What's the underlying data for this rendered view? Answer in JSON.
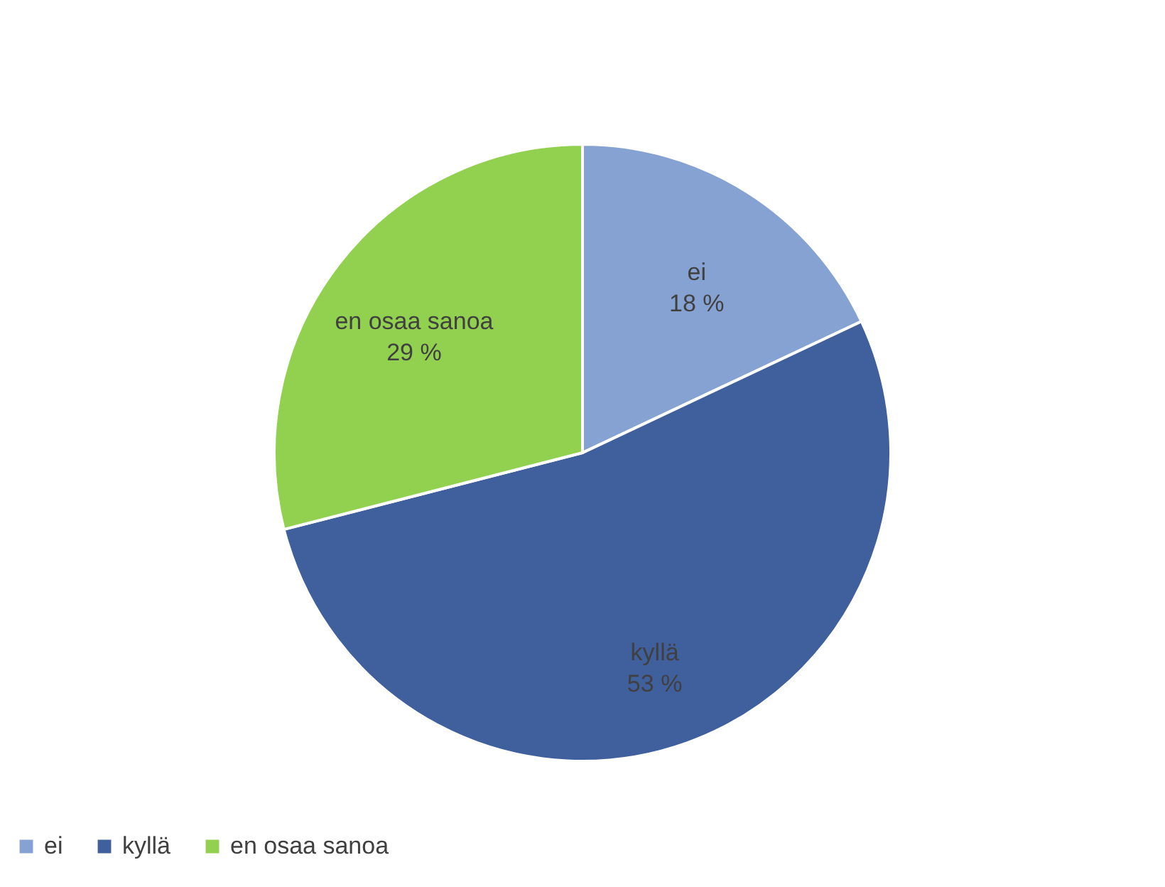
{
  "chart_data": {
    "type": "pie",
    "categories": [
      "ei",
      "kyllä",
      "en osaa sanoa"
    ],
    "values": [
      18,
      53,
      29
    ],
    "colors": [
      "#86a2d2",
      "#3f5f9d",
      "#92d050"
    ],
    "value_labels": [
      "18 %",
      "53 %",
      "29 %"
    ],
    "legend": "bottom"
  }
}
